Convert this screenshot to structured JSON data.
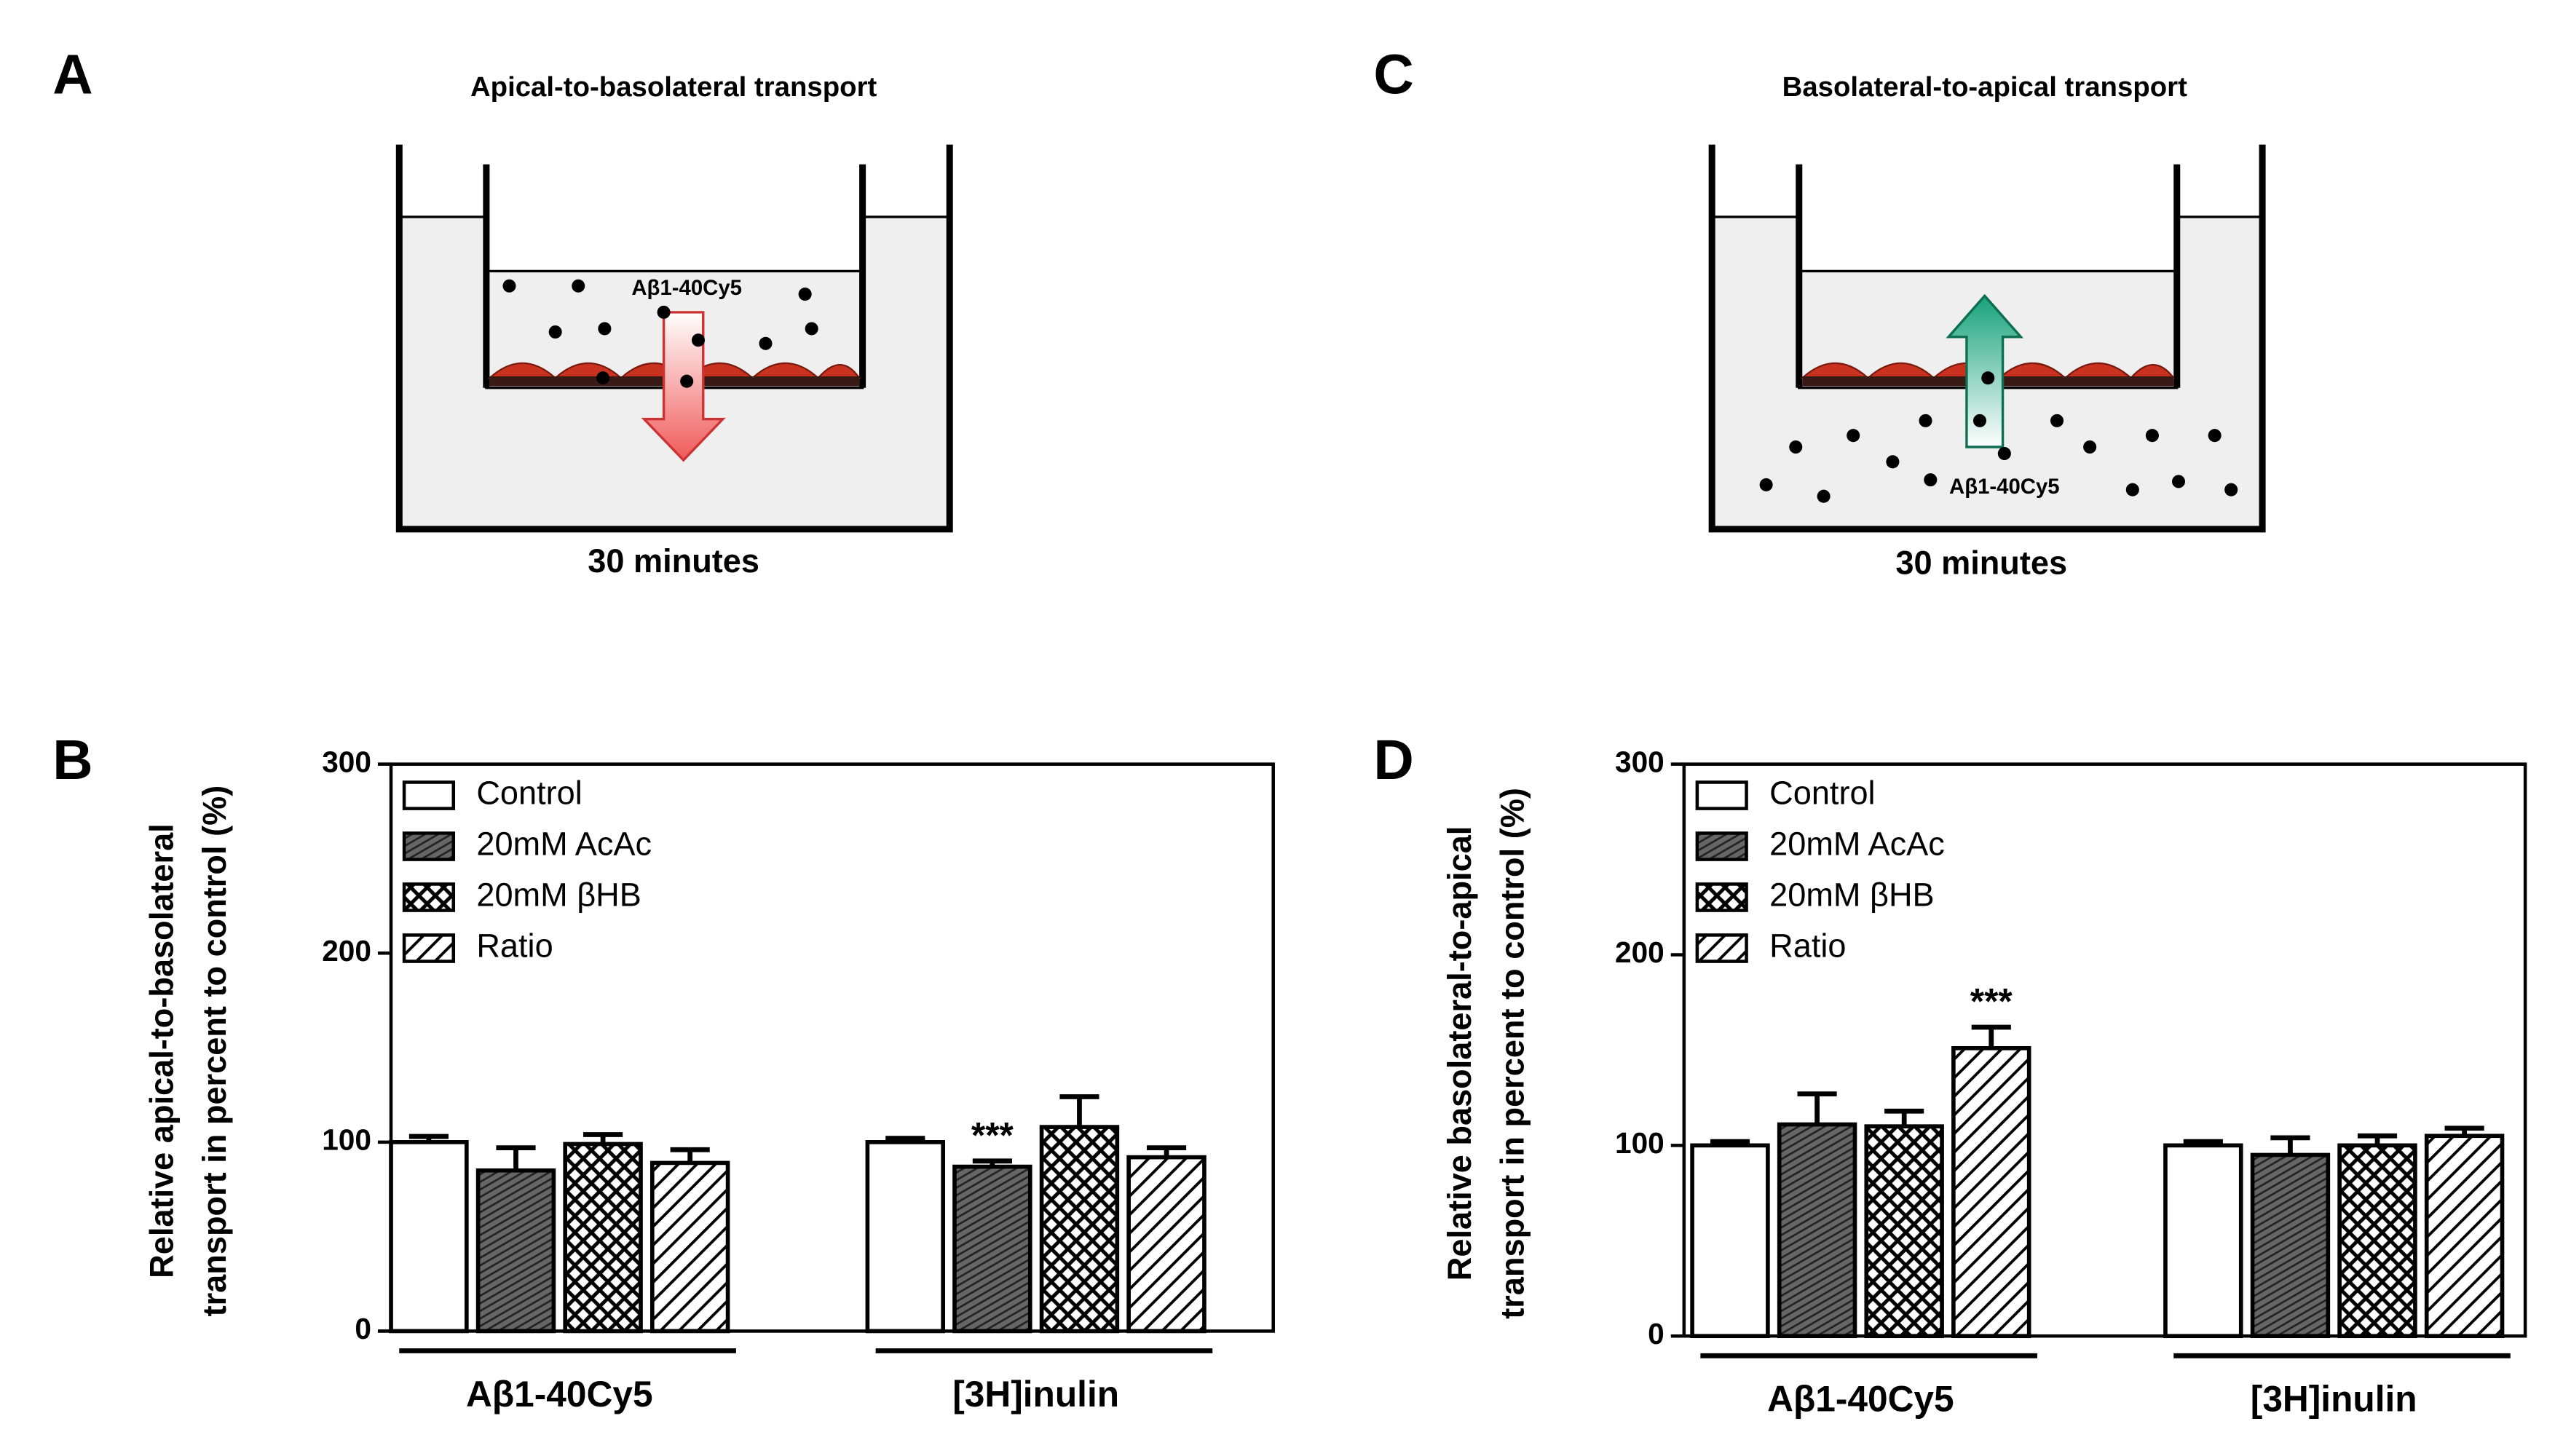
{
  "diagrams": [
    {
      "letter": "A",
      "title": "Apical-to-basolateral transport",
      "label": "Aβ1-40Cy5",
      "time": "30 minutes"
    },
    {
      "letter": "C",
      "title": "Basolateral-to-apical transport",
      "label": "Aβ1-40Cy5",
      "time": "30 minutes"
    }
  ],
  "chart_data": [
    {
      "type": "bar",
      "letter": "B",
      "ylabel": [
        "Relative apical-to-basolateral",
        "transport in percent to control (%)"
      ],
      "categories": [
        "Aβ1-40Cy5",
        "[3H]inulin"
      ],
      "ylim": [
        0,
        300
      ],
      "yticks": [
        0,
        100,
        200,
        300
      ],
      "legend": "top-left",
      "series": [
        {
          "name": "Control",
          "color": "#ffffff",
          "values": [
            100,
            100
          ],
          "errors": [
            3,
            2
          ]
        },
        {
          "name": "20mM AcAc",
          "color": "#555555",
          "values": [
            85,
            87
          ],
          "errors": [
            12,
            3
          ]
        },
        {
          "name": "20mM βHB",
          "color": "#ffffff",
          "values": [
            99,
            108
          ],
          "errors": [
            5,
            16
          ]
        },
        {
          "name": "Ratio",
          "color": "#ffffff",
          "values": [
            89,
            92
          ],
          "errors": [
            7,
            5
          ]
        }
      ],
      "annotations": [
        {
          "text": "***",
          "series": 1,
          "category": 1
        }
      ]
    },
    {
      "type": "bar",
      "letter": "D",
      "ylabel": [
        "Relative basolateral-to-apical",
        "transport in percent to control (%)"
      ],
      "categories": [
        "Aβ1-40Cy5",
        "[3H]inulin"
      ],
      "ylim": [
        0,
        300
      ],
      "yticks": [
        0,
        100,
        200,
        300
      ],
      "legend": "top-left",
      "series": [
        {
          "name": "Control",
          "color": "#ffffff",
          "values": [
            100,
            100
          ],
          "errors": [
            2,
            2
          ]
        },
        {
          "name": "20mM AcAc",
          "color": "#555555",
          "values": [
            111,
            95
          ],
          "errors": [
            16,
            9
          ]
        },
        {
          "name": "20mM βHB",
          "color": "#ffffff",
          "values": [
            110,
            100
          ],
          "errors": [
            8,
            5
          ]
        },
        {
          "name": "Ratio",
          "color": "#ffffff",
          "values": [
            151,
            105
          ],
          "errors": [
            11,
            4
          ]
        }
      ],
      "annotations": [
        {
          "text": "***",
          "series": 3,
          "category": 0
        }
      ]
    }
  ]
}
